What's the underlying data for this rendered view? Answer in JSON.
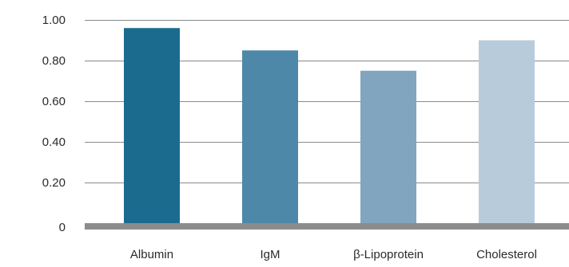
{
  "chart_data": {
    "type": "bar",
    "title": "",
    "xlabel": "",
    "ylabel": "",
    "categories": [
      "Albumin",
      "IgM",
      "β-Lipoprotein",
      "Cholesterol"
    ],
    "values": [
      0.96,
      0.85,
      0.75,
      0.9
    ],
    "bar_colors": [
      "#1b6b8f",
      "#4d88a9",
      "#81a5bf",
      "#b8cbdb"
    ],
    "ylim": [
      0,
      1.0
    ],
    "yticks": [
      0,
      0.2,
      0.4,
      0.6,
      0.8,
      1.0
    ],
    "ytick_labels": [
      "0",
      "0.20",
      "0.40",
      "0.60",
      "0.80",
      "1.00"
    ],
    "grid": true,
    "legend": "none"
  }
}
